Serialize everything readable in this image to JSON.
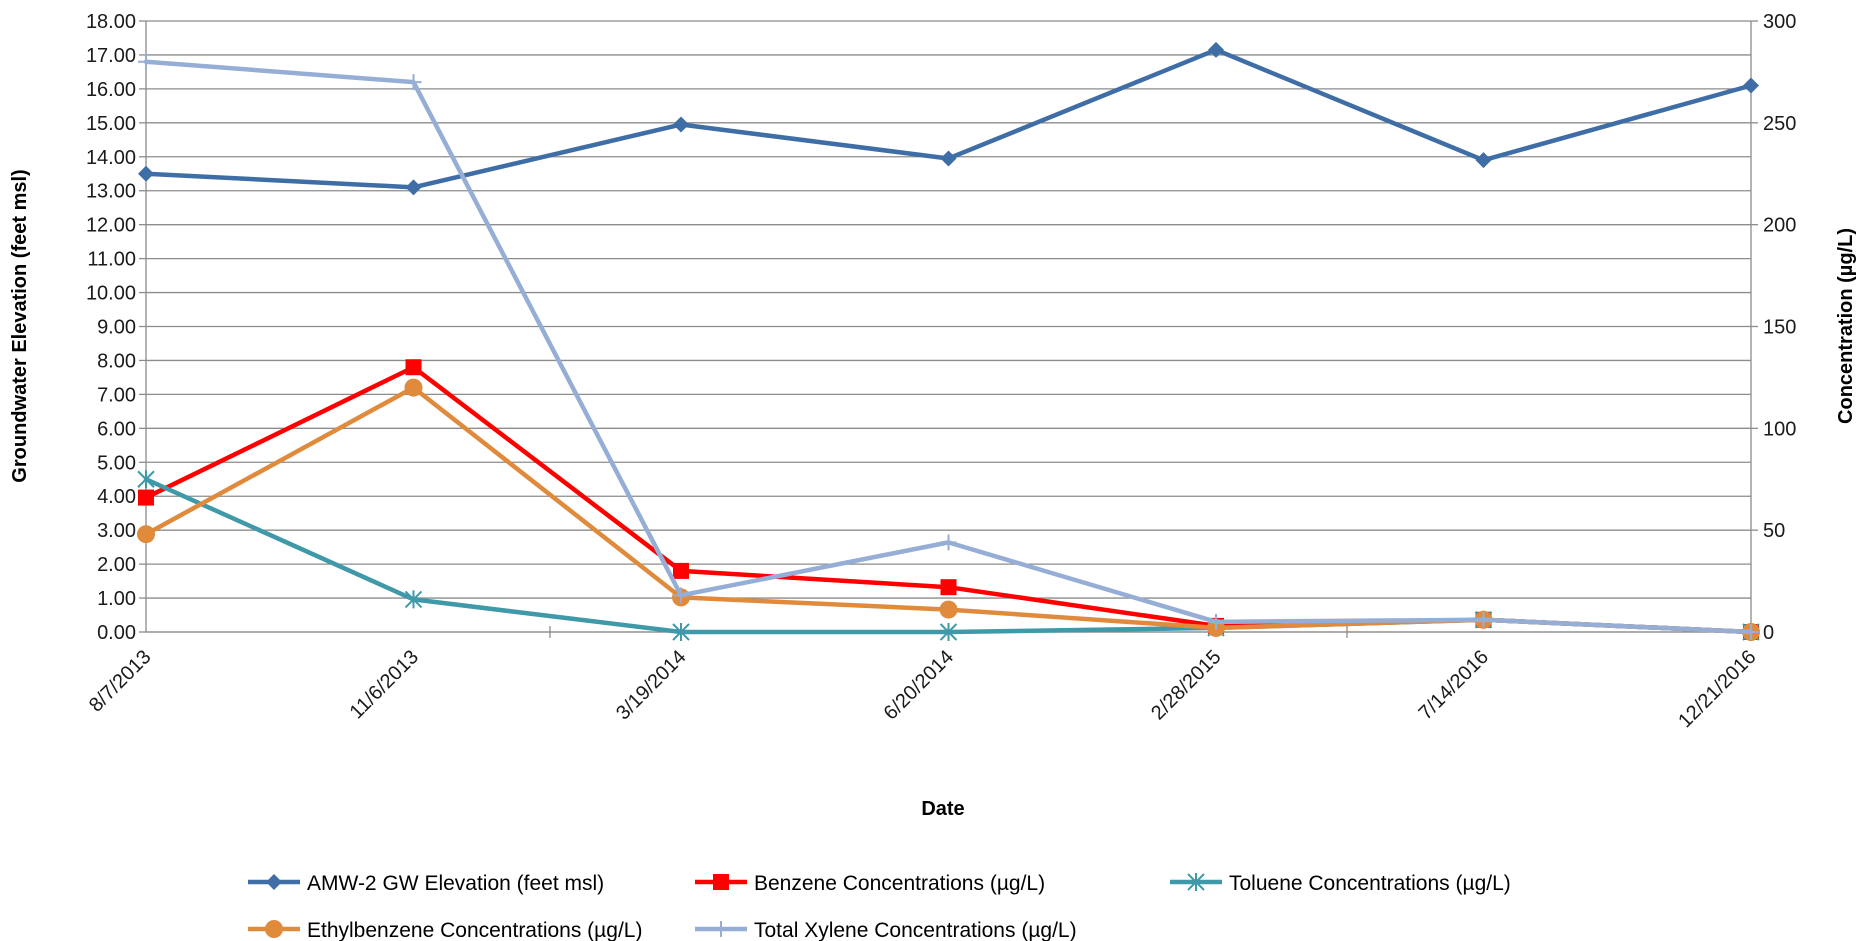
{
  "chart_data": {
    "type": "line",
    "title": "",
    "xlabel": "Date",
    "ylabel_left": "Groundwater Elevation (feet msl)",
    "ylabel_right": "Concentration (µg/L)",
    "categories": [
      "8/7/2013",
      "11/6/2013",
      "3/19/2014",
      "6/20/2014",
      "2/28/2015",
      "7/14/2016",
      "12/21/2016"
    ],
    "y_left": {
      "min": 0,
      "max": 18,
      "step": 1,
      "tick_labels": [
        "0.00",
        "1.00",
        "2.00",
        "3.00",
        "4.00",
        "5.00",
        "6.00",
        "7.00",
        "8.00",
        "9.00",
        "10.00",
        "11.00",
        "12.00",
        "13.00",
        "14.00",
        "15.00",
        "16.00",
        "17.00",
        "18.00"
      ]
    },
    "y_right": {
      "min": 0,
      "max": 300,
      "step": 50,
      "tick_labels": [
        "0",
        "50",
        "100",
        "150",
        "200",
        "250",
        "300"
      ]
    },
    "grid": true,
    "legend_position": "bottom",
    "series": [
      {
        "name": "AMW-2 GW Elevation (feet msl)",
        "axis": "left",
        "color": "#3f6ea7",
        "marker": "diamond",
        "values": [
          13.5,
          13.1,
          14.95,
          13.95,
          17.15,
          13.9,
          16.1
        ]
      },
      {
        "name": "Benzene Concentrations (µg/L)",
        "axis": "right",
        "color": "#ff0000",
        "marker": "square",
        "values": [
          66,
          130,
          30,
          22,
          3,
          6,
          0
        ]
      },
      {
        "name": "Toluene Concentrations  (µg/L)",
        "axis": "right",
        "color": "#3f99a8",
        "marker": "asterisk",
        "values": [
          75,
          16,
          0,
          0,
          2,
          6,
          0
        ]
      },
      {
        "name": "Ethylbenzene Concentrations  (µg/L)",
        "axis": "right",
        "color": "#e08a3c",
        "marker": "circle",
        "values": [
          48,
          120,
          17,
          11,
          2,
          6,
          0
        ]
      },
      {
        "name": "Total Xylene Concentrations  (µg/L)",
        "axis": "right",
        "color": "#96aed6",
        "marker": "plus",
        "values": [
          280,
          270,
          18,
          44,
          5,
          6,
          0
        ]
      }
    ]
  }
}
